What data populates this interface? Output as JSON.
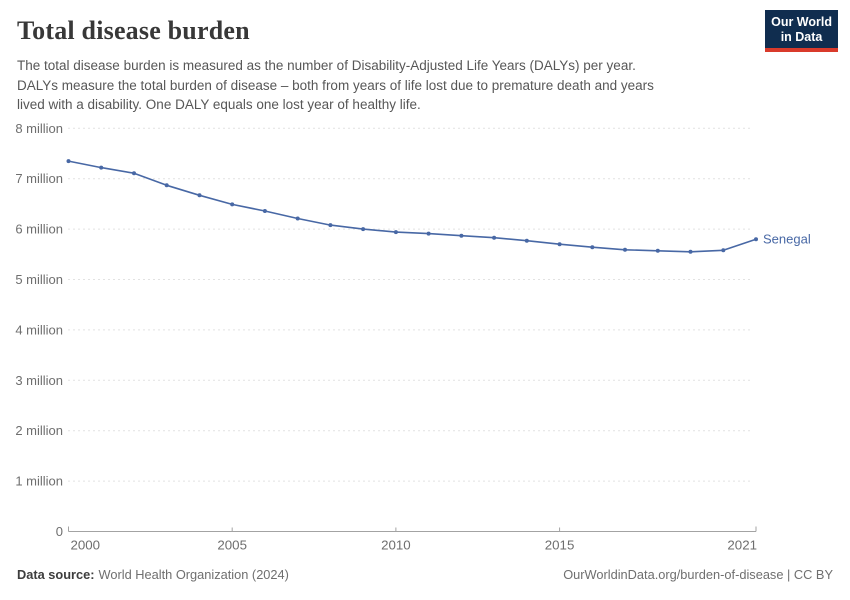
{
  "header": {
    "title": "Total disease burden",
    "subtitle_lines": [
      "The total disease burden is measured as the number of Disability-Adjusted Life Years (DALYs) per year.",
      "DALYs measure the total burden of disease – both from years of life lost due to premature death and years",
      "lived with a disability. One DALY equals one lost year of healthy life."
    ],
    "logo": {
      "line1": "Our World",
      "line2": "in Data",
      "bg_color": "#102d4f",
      "accent_color": "#d93a2b"
    }
  },
  "chart_data": {
    "type": "line",
    "title": "Total disease burden",
    "unit": "DALYs per year",
    "x": [
      2000,
      2001,
      2002,
      2003,
      2004,
      2005,
      2006,
      2007,
      2008,
      2009,
      2010,
      2011,
      2012,
      2013,
      2014,
      2015,
      2016,
      2017,
      2018,
      2019,
      2020,
      2021
    ],
    "series": [
      {
        "name": "Senegal",
        "color": "#4868A5",
        "values": [
          7350000,
          7220000,
          7110000,
          6870000,
          6670000,
          6490000,
          6360000,
          6210000,
          6080000,
          6000000,
          5940000,
          5910000,
          5870000,
          5830000,
          5770000,
          5700000,
          5640000,
          5590000,
          5570000,
          5550000,
          5580000,
          5800000
        ]
      }
    ],
    "ylim": [
      0,
      8000000
    ],
    "ytick_interval": 1000000,
    "ytick_labels": [
      "0",
      "1 million",
      "2 million",
      "3 million",
      "4 million",
      "5 million",
      "6 million",
      "7 million",
      "8 million"
    ],
    "xticks": [
      2000,
      2005,
      2010,
      2015,
      2021
    ],
    "grid": "horizontal-dashed",
    "grid_color": "#e2e2e2",
    "axis_color": "#a3a3a3",
    "tick_label_color": "#6e6e6e",
    "legend_position": "end-of-line"
  },
  "footer": {
    "datasource_label": "Data source:",
    "datasource_value": "World Health Organization (2024)",
    "credit": "OurWorldinData.org/burden-of-disease | CC BY"
  }
}
